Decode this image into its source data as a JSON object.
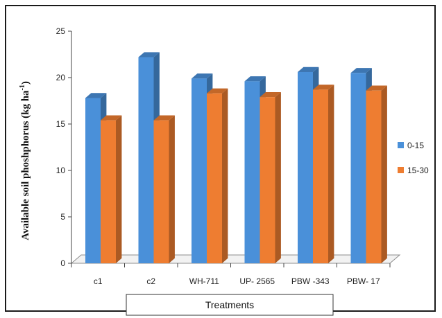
{
  "chart_data": {
    "type": "bar",
    "categories": [
      "c1",
      "c2",
      "WH-711",
      "UP- 2565",
      "PBW -343",
      "PBW- 17"
    ],
    "series": [
      {
        "name": "0-15",
        "values": [
          17.8,
          22.2,
          19.9,
          19.6,
          20.6,
          20.5
        ],
        "color": "#4a90d9"
      },
      {
        "name": "15-30",
        "values": [
          15.4,
          15.4,
          18.3,
          17.9,
          18.7,
          18.6
        ],
        "color": "#ee7d31"
      }
    ],
    "title": "",
    "xlabel": "Treatments",
    "ylabel": "Available soil phoshphorus (kg ha",
    "ylabel_superscript": "-1",
    "ylabel_close": ")",
    "ylim": [
      0,
      25
    ],
    "yticks": [
      0,
      5,
      10,
      15,
      20,
      25
    ],
    "grid": false,
    "legend_position": "right",
    "three_d": true
  }
}
